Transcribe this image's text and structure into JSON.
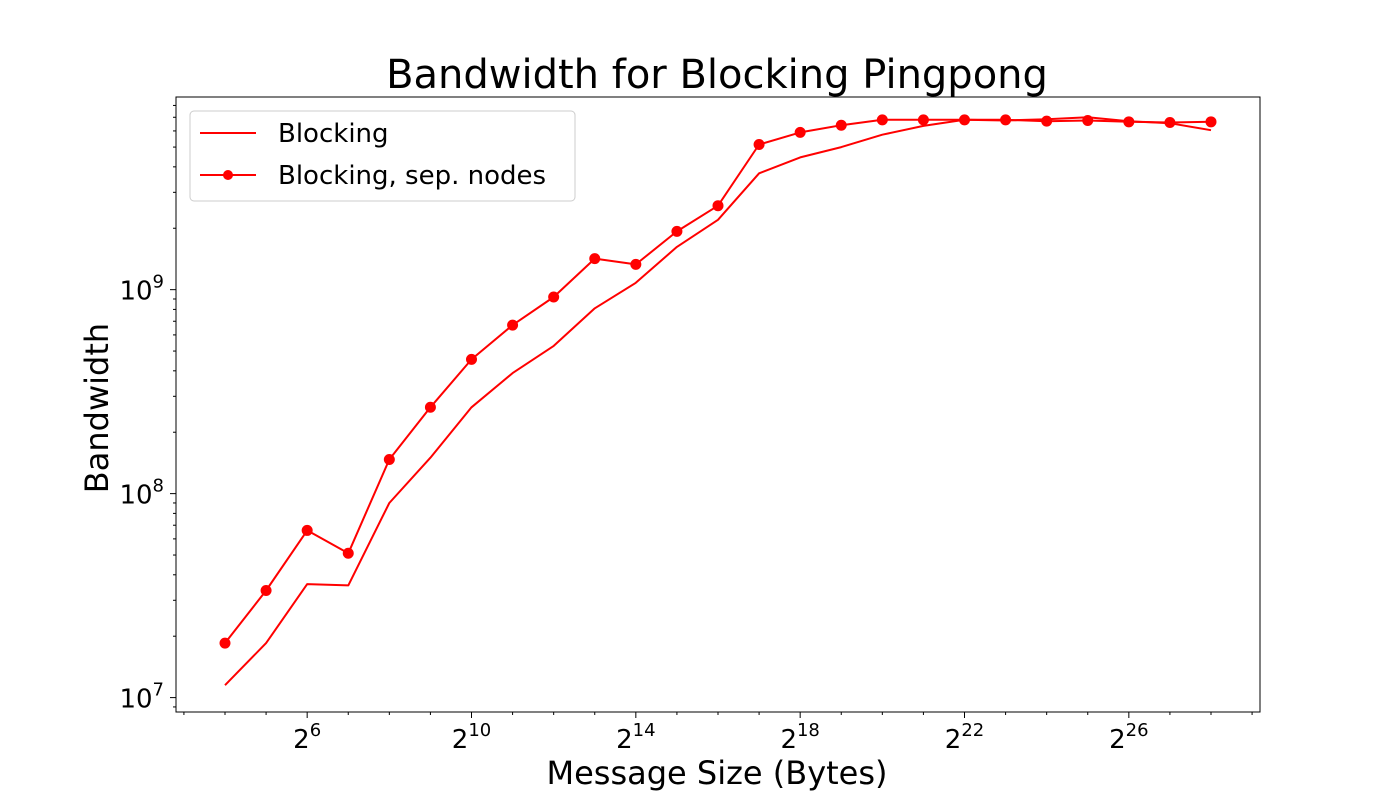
{
  "chart_data": {
    "type": "line",
    "title": "Bandwidth for Blocking Pingpong",
    "xlabel": "Message Size (Bytes)",
    "ylabel": "Bandwidth",
    "x_scale": "log2",
    "y_scale": "log10",
    "x_ticks": [
      {
        "base": "2",
        "exp": "6",
        "value": 64
      },
      {
        "base": "2",
        "exp": "10",
        "value": 1024
      },
      {
        "base": "2",
        "exp": "14",
        "value": 16384
      },
      {
        "base": "2",
        "exp": "18",
        "value": 262144
      },
      {
        "base": "2",
        "exp": "22",
        "value": 4194304
      },
      {
        "base": "2",
        "exp": "26",
        "value": 67108864
      }
    ],
    "y_ticks": [
      {
        "base": "10",
        "exp": "7",
        "value": 10000000
      },
      {
        "base": "10",
        "exp": "8",
        "value": 100000000
      },
      {
        "base": "10",
        "exp": "9",
        "value": 1000000000
      }
    ],
    "x": [
      16,
      32,
      64,
      128,
      256,
      512,
      1024,
      2048,
      4096,
      8192,
      16384,
      32768,
      65536,
      131072,
      262144,
      524288,
      1048576,
      2097152,
      4194304,
      8388608,
      16777216,
      33554432,
      67108864,
      134217728,
      268435456
    ],
    "series": [
      {
        "name": "Blocking",
        "color": "#ff0000",
        "marker": "none",
        "values": [
          11500000,
          18500000,
          36000000,
          35500000,
          90000000,
          150000000,
          265000000,
          390000000,
          530000000,
          810000000,
          1080000000,
          1620000000,
          2200000000,
          3720000000,
          4450000000,
          5000000000,
          5750000000,
          6350000000,
          6800000000,
          6750000000,
          6850000000,
          7000000000,
          6700000000,
          6550000000,
          6050000000
        ]
      },
      {
        "name": "Blocking, sep. nodes",
        "color": "#ff0000",
        "marker": "circle",
        "values": [
          18500000,
          33500000,
          66000000,
          51000000,
          147000000,
          265000000,
          455000000,
          670000000,
          920000000,
          1420000000,
          1330000000,
          1930000000,
          2580000000,
          5150000000,
          5900000000,
          6400000000,
          6800000000,
          6800000000,
          6800000000,
          6800000000,
          6700000000,
          6750000000,
          6650000000,
          6600000000,
          6650000000
        ]
      }
    ],
    "y_range": [
      8500000,
      8800000000
    ],
    "grid": false,
    "legend_position": "top-left"
  }
}
